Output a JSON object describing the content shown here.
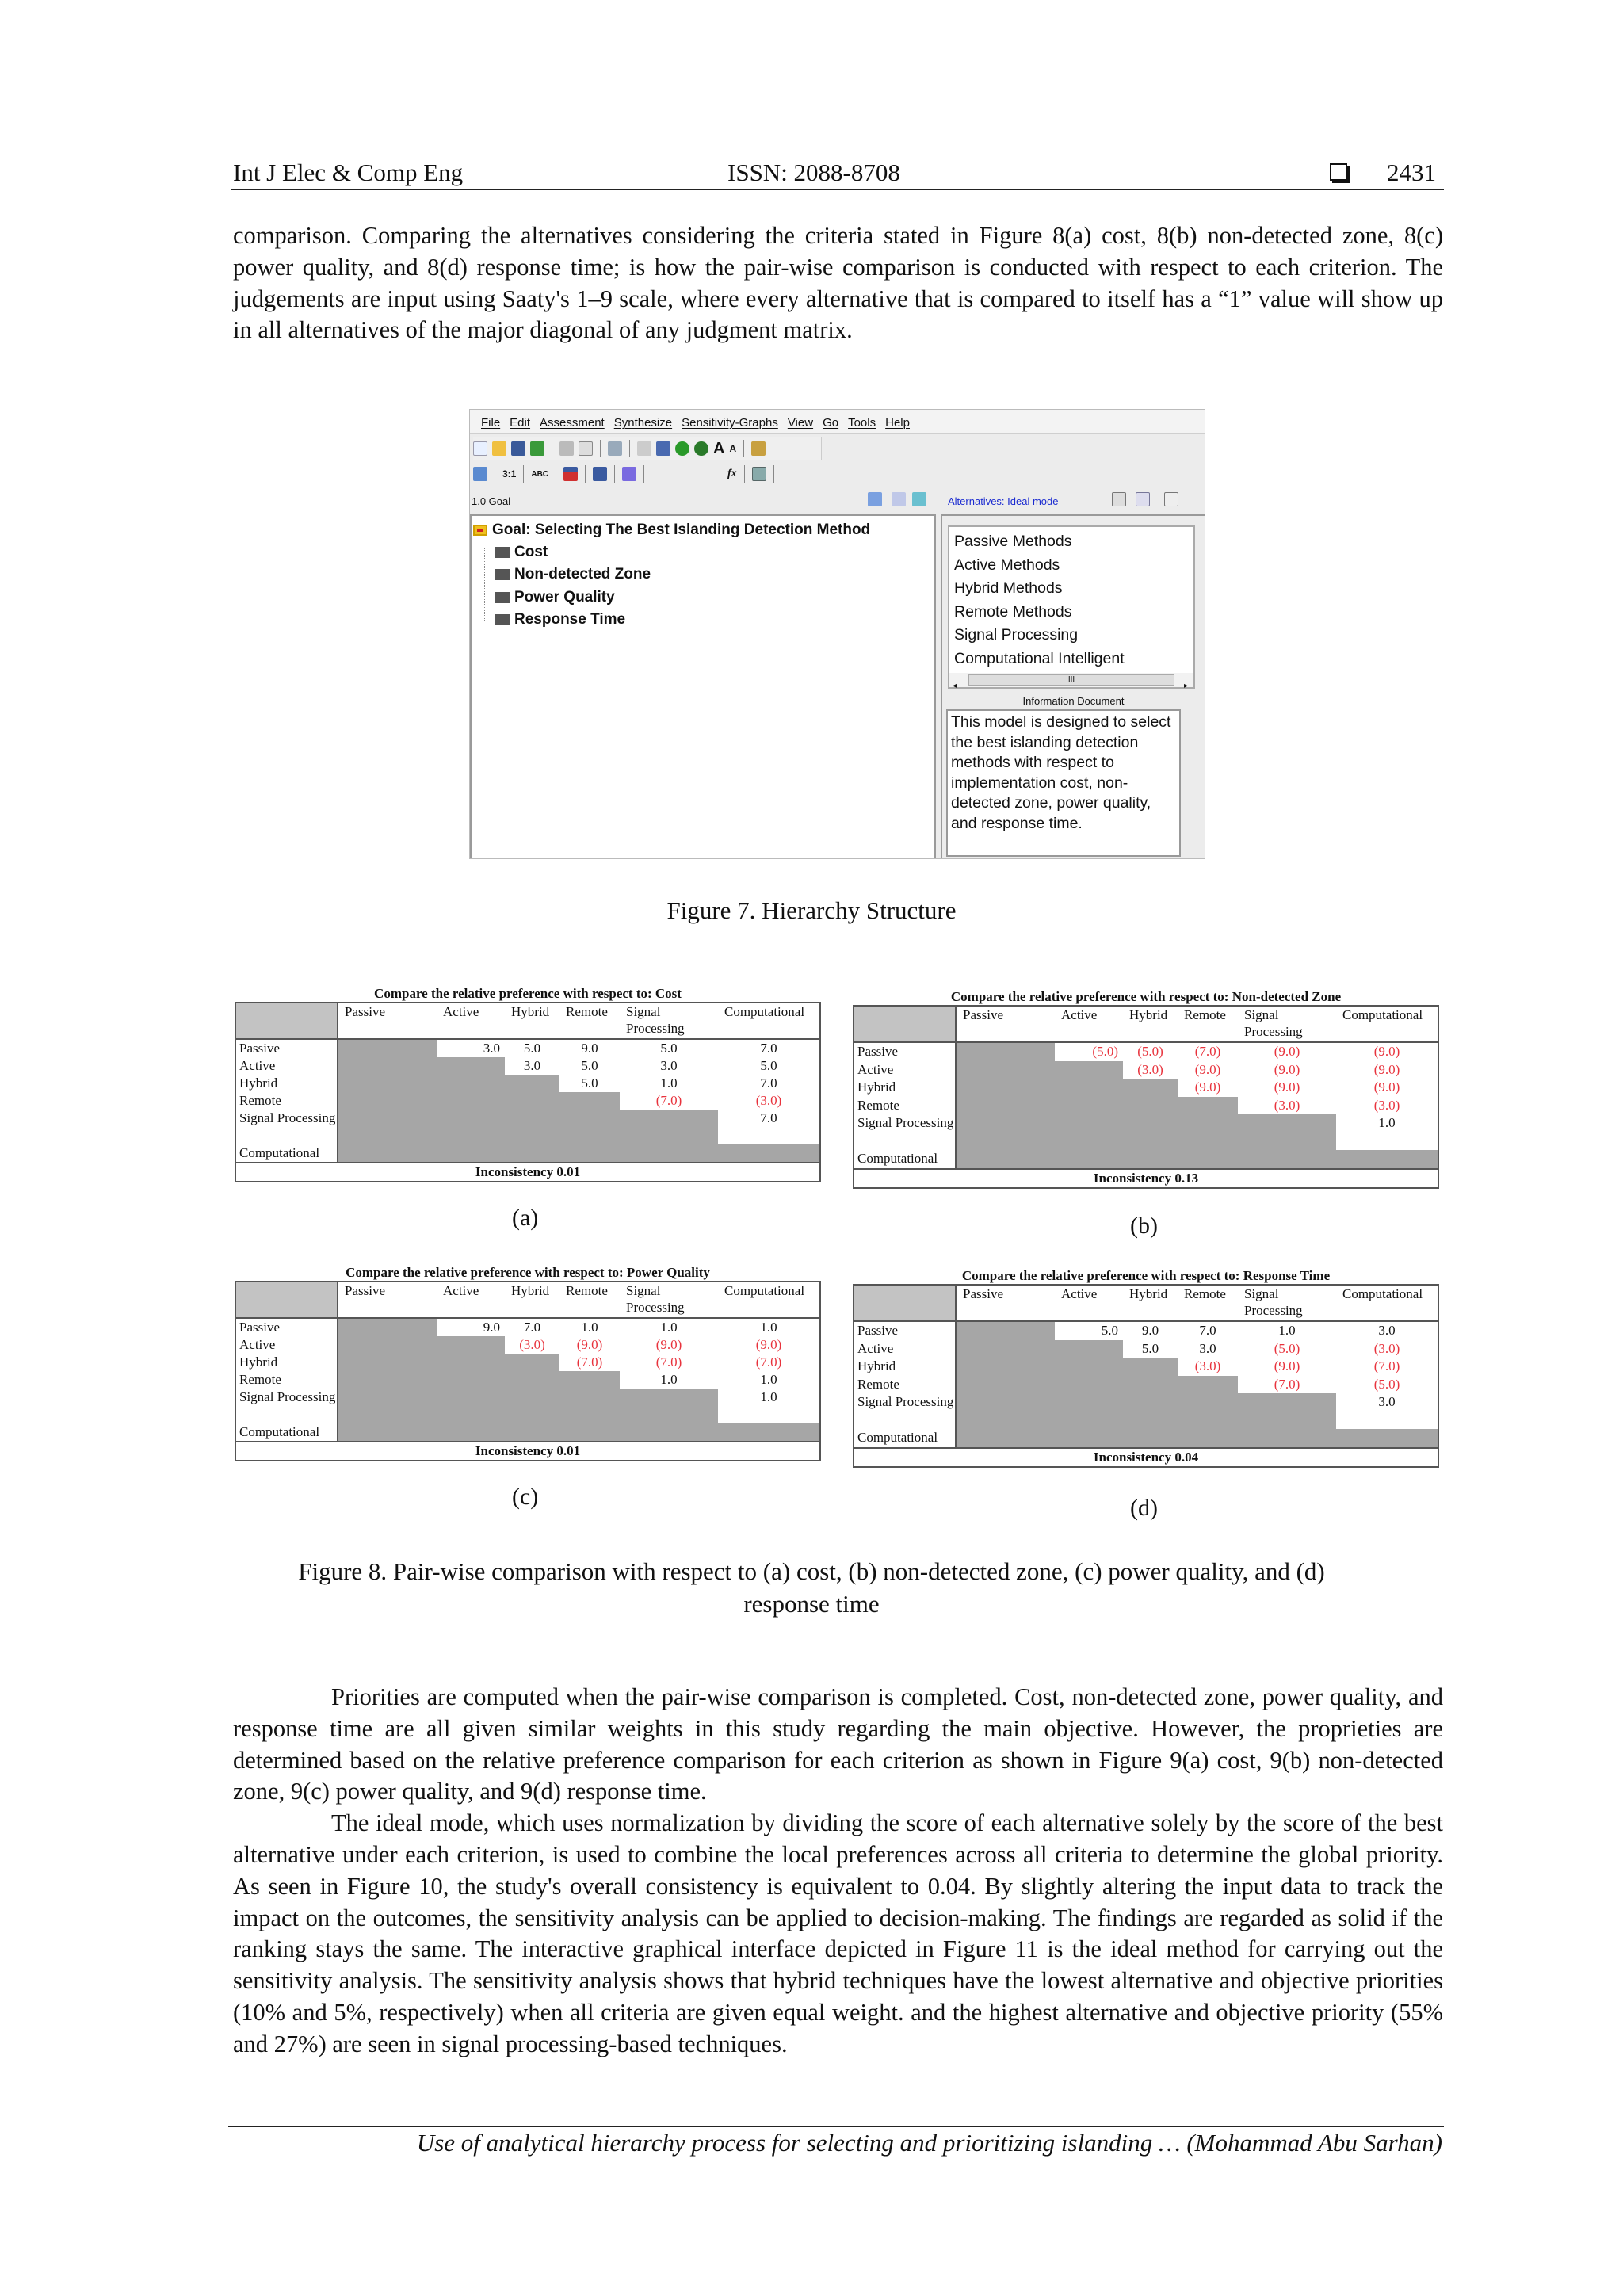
{
  "header": {
    "journal": "Int J Elec & Comp Eng",
    "issn": "ISSN: 2088-8708",
    "page_number": "2431",
    "page_icon": "square-bullet-icon"
  },
  "intro_paragraph": "comparison. Comparing the alternatives considering the criteria stated in Figure 8(a) cost, 8(b) non-detected zone, 8(c) power quality, and 8(d) response time; is how the pair-wise comparison is conducted with respect to each criterion. The judgements are input using Saaty's 1–9 scale, where every alternative that is compared to itself has a “1” value will show up in all alternatives of the major diagonal of any judgment matrix.",
  "figure7": {
    "menu": [
      "File",
      "Edit",
      "Assessment",
      "Synthesize",
      "Sensitivity-Graphs",
      "View",
      "Go",
      "Tools",
      "Help"
    ],
    "toolbar2_labels": {
      "ratio": "3:1",
      "abc": "ABC",
      "fx": "fx"
    },
    "left_header": "1.0 Goal",
    "goal": "Goal: Selecting The Best Islanding Detection Method",
    "criteria": [
      "Cost",
      "Non-detected Zone",
      "Power Quality",
      "Response Time"
    ],
    "right_header_link": "Alternatives: Ideal mode",
    "alternatives": [
      "Passive Methods",
      "Active Methods",
      "Hybrid Methods",
      "Remote Methods",
      "Signal Processing",
      "Computational Intelligent"
    ],
    "scroll_thumb": "III",
    "info_title": "Information Document",
    "info_text": "This model is designed to select the best islanding detection methods with respect to implementation cost, non-detected zone, power quality, and response time."
  },
  "figure7_caption": "Figure 7. Hierarchy Structure",
  "comparison": {
    "columns": [
      "Passive",
      "Active",
      "Hybrid",
      "Remote",
      "Signal Processing",
      "Computational"
    ],
    "row_labels": [
      "Passive",
      "Active",
      "Hybrid",
      "Remote",
      "Signal Processing",
      "Computational"
    ],
    "inverse_color": "#e8333d",
    "tables": [
      {
        "label": "(a)",
        "title": "Compare the relative preference with respect to: Cost",
        "inconsistency": "Inconsistency 0.01",
        "rows": [
          [
            "3.0",
            "5.0",
            "9.0",
            "5.0",
            "7.0"
          ],
          [
            "3.0",
            "5.0",
            "3.0",
            "5.0"
          ],
          [
            "5.0",
            "1.0",
            "7.0"
          ],
          [
            "(7.0)",
            "(3.0)"
          ],
          [
            "7.0"
          ]
        ]
      },
      {
        "label": "(b)",
        "title": "Compare the relative preference with respect to: Non-detected Zone",
        "inconsistency": "Inconsistency 0.13",
        "rows": [
          [
            "(5.0)",
            "(5.0)",
            "(7.0)",
            "(9.0)",
            "(9.0)"
          ],
          [
            "(3.0)",
            "(9.0)",
            "(9.0)",
            "(9.0)"
          ],
          [
            "(9.0)",
            "(9.0)",
            "(9.0)"
          ],
          [
            "(3.0)",
            "(3.0)"
          ],
          [
            "1.0"
          ]
        ]
      },
      {
        "label": "(c)",
        "title": "Compare the relative preference with respect to: Power Quality",
        "inconsistency": "Inconsistency 0.01",
        "rows": [
          [
            "9.0",
            "7.0",
            "1.0",
            "1.0",
            "1.0"
          ],
          [
            "(3.0)",
            "(9.0)",
            "(9.0)",
            "(9.0)"
          ],
          [
            "(7.0)",
            "(7.0)",
            "(7.0)"
          ],
          [
            "1.0",
            "1.0"
          ],
          [
            "1.0"
          ]
        ]
      },
      {
        "label": "(d)",
        "title": "Compare the relative preference with respect to: Response Time",
        "inconsistency": "Inconsistency 0.04",
        "rows": [
          [
            "5.0",
            "9.0",
            "7.0",
            "1.0",
            "3.0"
          ],
          [
            "5.0",
            "3.0",
            "(5.0)",
            "(3.0)"
          ],
          [
            "(3.0)",
            "(9.0)",
            "(7.0)"
          ],
          [
            "(7.0)",
            "(5.0)"
          ],
          [
            "3.0"
          ]
        ]
      }
    ]
  },
  "figure8_caption": "Figure 8. Pair-wise comparison with respect to (a) cost, (b) non-detected zone, (c) power quality, and (d) response time",
  "paragraphs": [
    "Priorities are computed when the pair-wise comparison is completed. Cost, non-detected zone, power quality, and response time are all given similar weights in this study regarding the main objective. However, the proprieties are determined based on the relative preference comparison for each criterion as shown in Figure 9(a) cost, 9(b) non-detected zone, 9(c) power quality, and 9(d) response time.",
    "The ideal mode, which uses normalization by dividing the score of each alternative solely by the score of the best alternative under each criterion, is used to combine the local preferences across all criteria to determine the global priority. As seen in Figure 10, the study's overall consistency is equivalent to 0.04. By slightly altering the input data to track the impact on the outcomes, the sensitivity analysis can be applied to decision-making. The findings are regarded as solid if the ranking stays the same. The interactive graphical interface depicted in Figure 11 is the ideal method for carrying out the sensitivity analysis. The sensitivity analysis shows that hybrid techniques have the lowest alternative and objective priorities (10% and 5%, respectively) when all criteria are given equal weight. and the highest alternative and objective priority (55% and 27%) are seen in signal processing-based techniques."
  ],
  "footer": "Use of analytical hierarchy process for selecting and prioritizing islanding … (Mohammad Abu Sarhan)"
}
